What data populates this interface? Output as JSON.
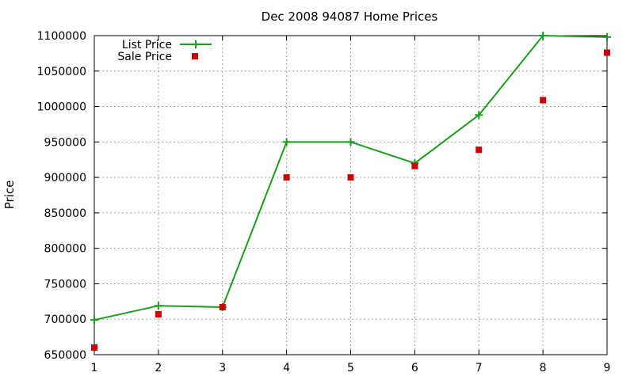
{
  "chart_data": {
    "type": "line",
    "title": "Dec 2008 94087 Home Prices",
    "xlabel": "",
    "ylabel": "Price",
    "x": [
      1,
      2,
      3,
      4,
      5,
      6,
      7,
      8,
      9
    ],
    "xlim": [
      1,
      9
    ],
    "ylim": [
      650000,
      1100000
    ],
    "yticks": [
      650000,
      700000,
      750000,
      800000,
      850000,
      900000,
      950000,
      1000000,
      1050000,
      1100000
    ],
    "grid": true,
    "legend_position": "top-left",
    "series": [
      {
        "name": "List Price",
        "style": "line-with-plus-markers",
        "color": "#1a9e1a",
        "values": [
          699000,
          719000,
          717000,
          950000,
          950000,
          920000,
          988000,
          1100000,
          1098000
        ]
      },
      {
        "name": "Sale Price",
        "style": "square-markers",
        "color": "#cc0000",
        "values": [
          660000,
          707000,
          717000,
          900000,
          900000,
          916000,
          939000,
          1009000,
          1076000
        ]
      }
    ]
  }
}
